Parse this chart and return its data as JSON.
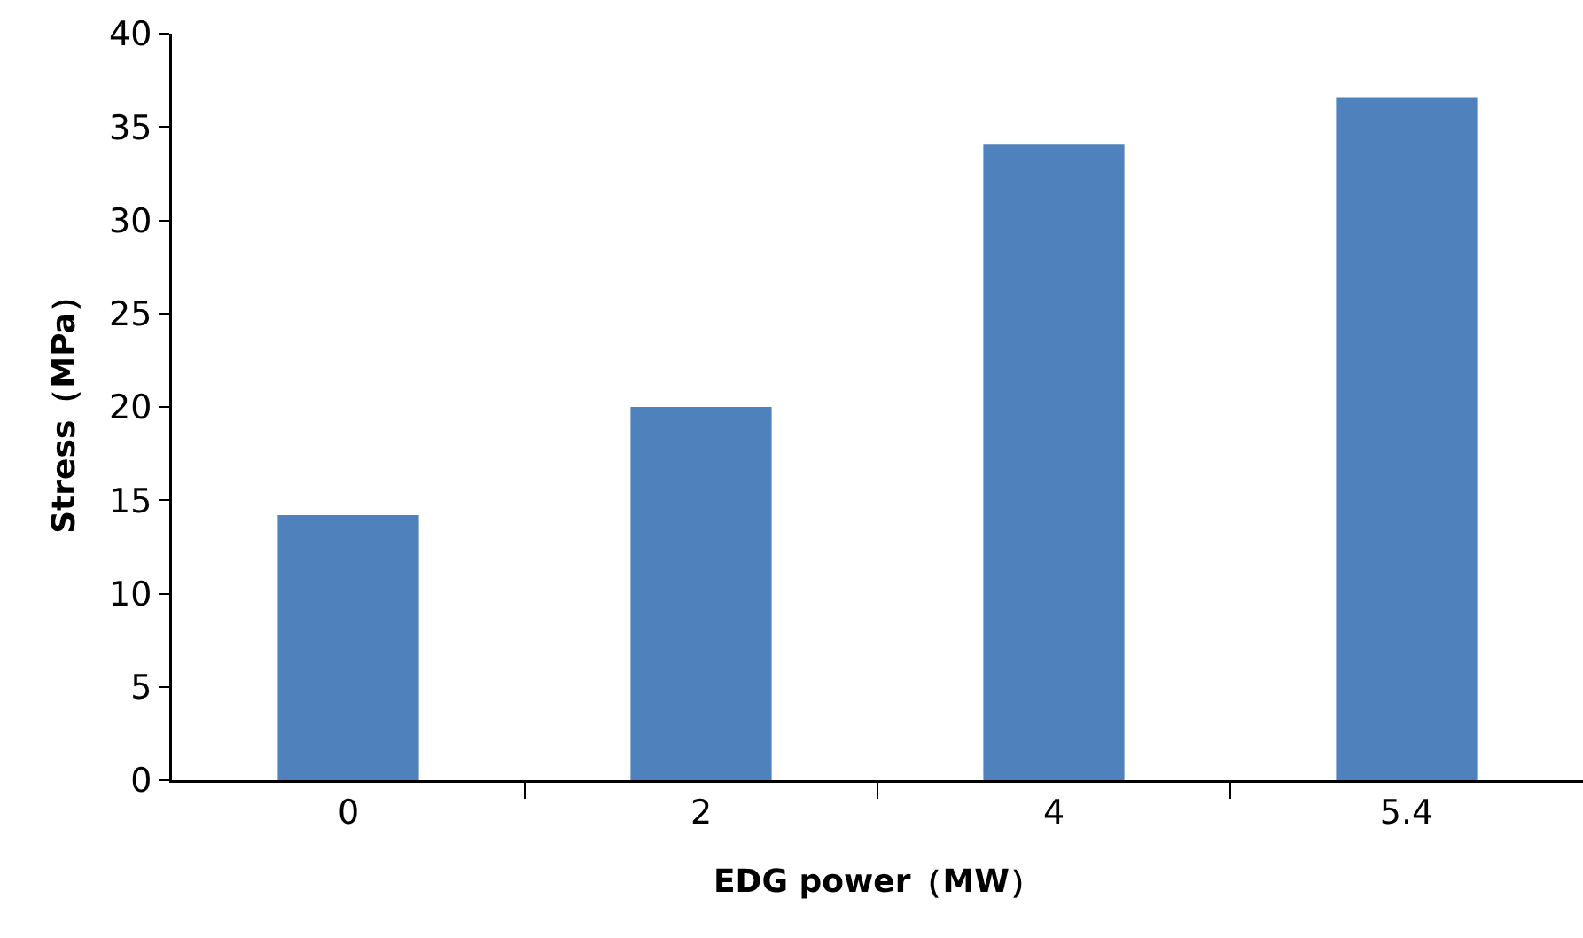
{
  "chart_data": {
    "type": "bar",
    "xlabel": "EDG power（MW）",
    "ylabel": "Stress（MPa）",
    "categories": [
      "0",
      "2",
      "4",
      "5.4"
    ],
    "values": [
      14.2,
      20.0,
      34.1,
      36.6
    ],
    "color": "#4f81bd",
    "ylim": [
      0,
      40
    ],
    "yticks": [
      0,
      5,
      10,
      15,
      20,
      25,
      30,
      35,
      40
    ],
    "grid": false
  }
}
